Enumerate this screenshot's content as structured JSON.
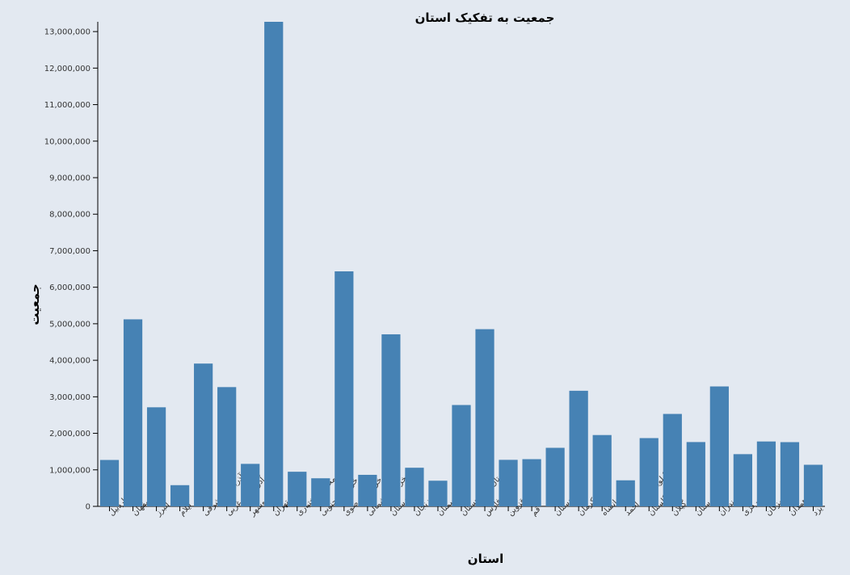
{
  "chart_data": {
    "type": "bar",
    "title": "جمعیت به تفکیک استان",
    "xlabel": "استان",
    "ylabel": "جمعیت",
    "ylim": [
      0,
      13267637
    ],
    "yticks": [
      0,
      1000000,
      2000000,
      3000000,
      4000000,
      5000000,
      6000000,
      7000000,
      8000000,
      9000000,
      10000000,
      11000000,
      12000000,
      13000000
    ],
    "ytick_labels": [
      "0",
      "1,000,000",
      "2,000,000",
      "3,000,000",
      "4,000,000",
      "5,000,000",
      "6,000,000",
      "7,000,000",
      "8,000,000",
      "9,000,000",
      "10,000,000",
      "11,000,000",
      "12,000,000",
      "13,000,000"
    ],
    "categories": [
      "اردبیل",
      "اصفهان",
      "البرز",
      "ایلام",
      "آذربایجان شرقی",
      "آذربایجان غربی",
      "بوشهر",
      "تهران",
      "چهارمحال و بختیاری",
      "خراسان جنوبی",
      "خراسان رضوی",
      "خراسان شمالی",
      "خوزستان",
      "زنجان",
      "سمنان",
      "سیستان و بلوچستان",
      "فارس",
      "قزوین",
      "قم",
      "کردستان",
      "کرمان",
      "کرمانشاه",
      "کهگیلویه و بویراحمد",
      "گلستان",
      "گیلان",
      "لرستان",
      "مازندران",
      "مرکزی",
      "هرمزگان",
      "همدان",
      "یزد"
    ],
    "values": [
      1270420,
      5120850,
      2712400,
      580158,
      3909652,
      3265219,
      1163400,
      13267637,
      947763,
      768898,
      6434501,
      863092,
      4710509,
      1057461,
      702360,
      2775014,
      4851274,
      1273761,
      1292283,
      1603011,
      3164718,
      1952434,
      713052,
      1868819,
      2530696,
      1760649,
      3283582,
      1429475,
      1776415,
      1758268,
      1138533
    ],
    "grid": false,
    "bar_color": "#4682b4",
    "background": "#e3e9f1"
  }
}
